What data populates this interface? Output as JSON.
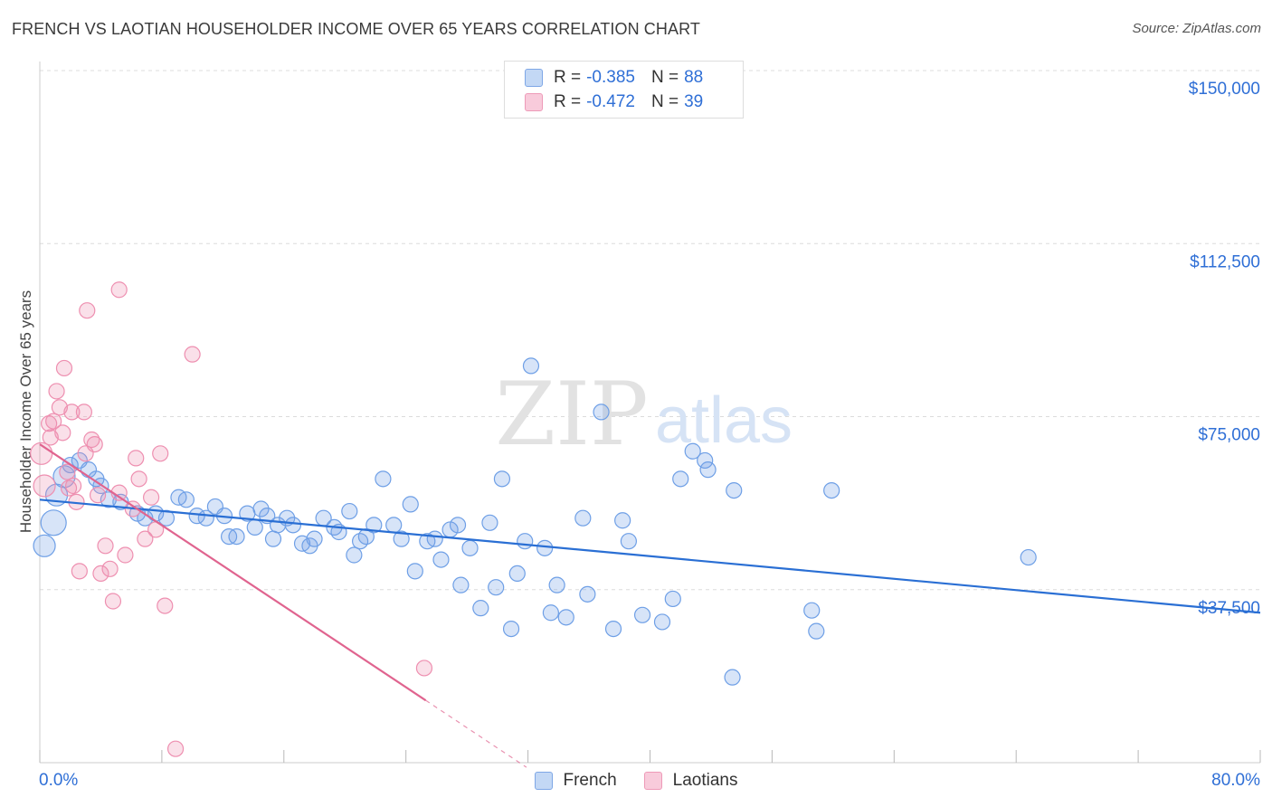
{
  "header": {
    "title": "FRENCH VS LAOTIAN HOUSEHOLDER INCOME OVER 65 YEARS CORRELATION CHART",
    "source": "Source: ZipAtlas.com"
  },
  "watermark": {
    "zip": "ZIP",
    "atlas": "atlas"
  },
  "legend_top": {
    "rows": [
      {
        "r_label": "R =",
        "r_value": "-0.385",
        "n_label": "N =",
        "n_value": "88",
        "color": "#6e9fe6"
      },
      {
        "r_label": "R =",
        "r_value": "-0.472",
        "n_label": "N =",
        "n_value": "39",
        "color": "#ee8fb0"
      }
    ]
  },
  "legend_bottom": {
    "items": [
      {
        "label": "French",
        "color": "#6e9fe6"
      },
      {
        "label": "Laotians",
        "color": "#ee8fb0"
      }
    ]
  },
  "axes": {
    "x_min_label": "0.0%",
    "x_max_label": "80.0%"
  },
  "chart_data": {
    "type": "scatter",
    "title": "FRENCH VS LAOTIAN HOUSEHOLDER INCOME OVER 65 YEARS CORRELATION CHART",
    "xlabel": "",
    "ylabel": "Householder Income Over 65 years",
    "xlim": [
      0,
      80
    ],
    "ylim": [
      0,
      150000
    ],
    "yticks": [
      {
        "value": 37500,
        "label": "$37,500"
      },
      {
        "value": 75000,
        "label": "$75,000"
      },
      {
        "value": 112500,
        "label": "$112,500"
      },
      {
        "value": 150000,
        "label": "$150,000"
      }
    ],
    "grid": true,
    "legend_position": "top-center",
    "series": [
      {
        "name": "French",
        "color": "#6e9fe6",
        "line_color": "#2a6fd4",
        "trend": {
          "x": [
            0,
            80
          ],
          "y": [
            57000,
            32500
          ]
        },
        "points": [
          [
            0.3,
            47000,
            2
          ],
          [
            0.9,
            52000,
            3
          ],
          [
            1.1,
            58000,
            2
          ],
          [
            1.6,
            62000,
            2
          ],
          [
            2.0,
            64500,
            1
          ],
          [
            2.6,
            65500,
            1
          ],
          [
            3.2,
            63500,
            1
          ],
          [
            3.7,
            61500,
            1
          ],
          [
            4.0,
            60000,
            1
          ],
          [
            4.5,
            57000,
            1
          ],
          [
            5.3,
            56500,
            1
          ],
          [
            6.4,
            54000,
            1
          ],
          [
            6.9,
            53000,
            1
          ],
          [
            7.6,
            54000,
            1
          ],
          [
            8.3,
            53000,
            1
          ],
          [
            9.1,
            57500,
            1
          ],
          [
            9.6,
            57000,
            1
          ],
          [
            10.3,
            53500,
            1
          ],
          [
            10.9,
            53000,
            1
          ],
          [
            11.5,
            55500,
            1
          ],
          [
            12.1,
            53500,
            1
          ],
          [
            12.4,
            49000,
            1
          ],
          [
            12.9,
            49000,
            1
          ],
          [
            13.6,
            54000,
            1
          ],
          [
            14.1,
            51000,
            1
          ],
          [
            14.5,
            55000,
            1
          ],
          [
            14.9,
            53500,
            1
          ],
          [
            15.3,
            48500,
            1
          ],
          [
            15.6,
            51500,
            1
          ],
          [
            16.2,
            53000,
            1
          ],
          [
            16.6,
            51500,
            1
          ],
          [
            17.2,
            47500,
            1
          ],
          [
            17.7,
            47000,
            1
          ],
          [
            18.0,
            48500,
            1
          ],
          [
            18.6,
            53000,
            1
          ],
          [
            19.3,
            51000,
            1
          ],
          [
            19.6,
            50000,
            1
          ],
          [
            20.3,
            54500,
            1
          ],
          [
            20.6,
            45000,
            1
          ],
          [
            21.0,
            48000,
            1
          ],
          [
            21.4,
            49000,
            1
          ],
          [
            21.9,
            51500,
            1
          ],
          [
            22.5,
            61500,
            1
          ],
          [
            23.2,
            51500,
            1
          ],
          [
            23.7,
            48500,
            1
          ],
          [
            24.3,
            56000,
            1
          ],
          [
            24.6,
            41500,
            1
          ],
          [
            25.4,
            48000,
            1
          ],
          [
            25.9,
            48500,
            1
          ],
          [
            26.3,
            44000,
            1
          ],
          [
            26.9,
            50500,
            1
          ],
          [
            27.4,
            51500,
            1
          ],
          [
            27.6,
            38500,
            1
          ],
          [
            28.2,
            46500,
            1
          ],
          [
            28.9,
            33500,
            1
          ],
          [
            29.5,
            52000,
            1
          ],
          [
            29.9,
            38000,
            1
          ],
          [
            30.3,
            61500,
            1
          ],
          [
            30.9,
            29000,
            1
          ],
          [
            31.3,
            41000,
            1
          ],
          [
            31.8,
            48000,
            1
          ],
          [
            32.2,
            86000,
            1
          ],
          [
            33.1,
            46500,
            1
          ],
          [
            33.5,
            32500,
            1
          ],
          [
            33.9,
            38500,
            1
          ],
          [
            34.5,
            31500,
            1
          ],
          [
            35.6,
            53000,
            1
          ],
          [
            35.9,
            36500,
            1
          ],
          [
            36.8,
            76000,
            1
          ],
          [
            37.6,
            29000,
            1
          ],
          [
            38.2,
            52500,
            1
          ],
          [
            38.6,
            48000,
            1
          ],
          [
            39.5,
            32000,
            1
          ],
          [
            40.8,
            30500,
            1
          ],
          [
            41.5,
            35500,
            1
          ],
          [
            42.0,
            61500,
            1
          ],
          [
            42.8,
            67500,
            1
          ],
          [
            43.6,
            65500,
            1
          ],
          [
            43.8,
            63500,
            1
          ],
          [
            45.5,
            59000,
            1
          ],
          [
            45.4,
            18500,
            1
          ],
          [
            50.6,
            33000,
            1
          ],
          [
            50.9,
            28500,
            1
          ],
          [
            51.9,
            59000,
            1
          ],
          [
            64.8,
            44500,
            1
          ]
        ]
      },
      {
        "name": "Laotians",
        "color": "#ee8fb0",
        "line_color": "#e0648f",
        "trend": {
          "x": [
            0,
            25.3
          ],
          "y": [
            69000,
            13500
          ]
        },
        "trend_dashed": {
          "x": [
            25.3,
            31.9
          ],
          "y": [
            13500,
            -1000
          ]
        },
        "points": [
          [
            0.1,
            67000,
            2
          ],
          [
            0.3,
            60000,
            2
          ],
          [
            0.6,
            73500,
            1
          ],
          [
            0.7,
            70500,
            1
          ],
          [
            0.9,
            74000,
            1
          ],
          [
            1.1,
            80500,
            1
          ],
          [
            1.3,
            77000,
            1
          ],
          [
            1.5,
            71500,
            1
          ],
          [
            1.6,
            85500,
            1
          ],
          [
            1.8,
            63000,
            1
          ],
          [
            1.9,
            59500,
            1
          ],
          [
            2.1,
            76000,
            1
          ],
          [
            2.2,
            60000,
            1
          ],
          [
            2.4,
            56500,
            1
          ],
          [
            2.6,
            41500,
            1
          ],
          [
            2.9,
            76000,
            1
          ],
          [
            3.0,
            67000,
            1
          ],
          [
            3.1,
            98000,
            1
          ],
          [
            3.4,
            70000,
            1
          ],
          [
            3.6,
            69000,
            1
          ],
          [
            3.8,
            58000,
            1
          ],
          [
            4.0,
            41000,
            1
          ],
          [
            4.3,
            47000,
            1
          ],
          [
            4.6,
            42000,
            1
          ],
          [
            4.8,
            35000,
            1
          ],
          [
            5.2,
            58500,
            1
          ],
          [
            5.2,
            102500,
            1
          ],
          [
            5.6,
            45000,
            1
          ],
          [
            6.1,
            55000,
            1
          ],
          [
            6.3,
            66000,
            1
          ],
          [
            6.5,
            61500,
            1
          ],
          [
            6.9,
            48500,
            1
          ],
          [
            7.3,
            57500,
            1
          ],
          [
            7.6,
            50500,
            1
          ],
          [
            7.9,
            67000,
            1
          ],
          [
            8.2,
            34000,
            1
          ],
          [
            8.9,
            3000,
            1
          ],
          [
            10.0,
            88500,
            1
          ],
          [
            25.2,
            20500,
            1
          ]
        ]
      }
    ]
  }
}
